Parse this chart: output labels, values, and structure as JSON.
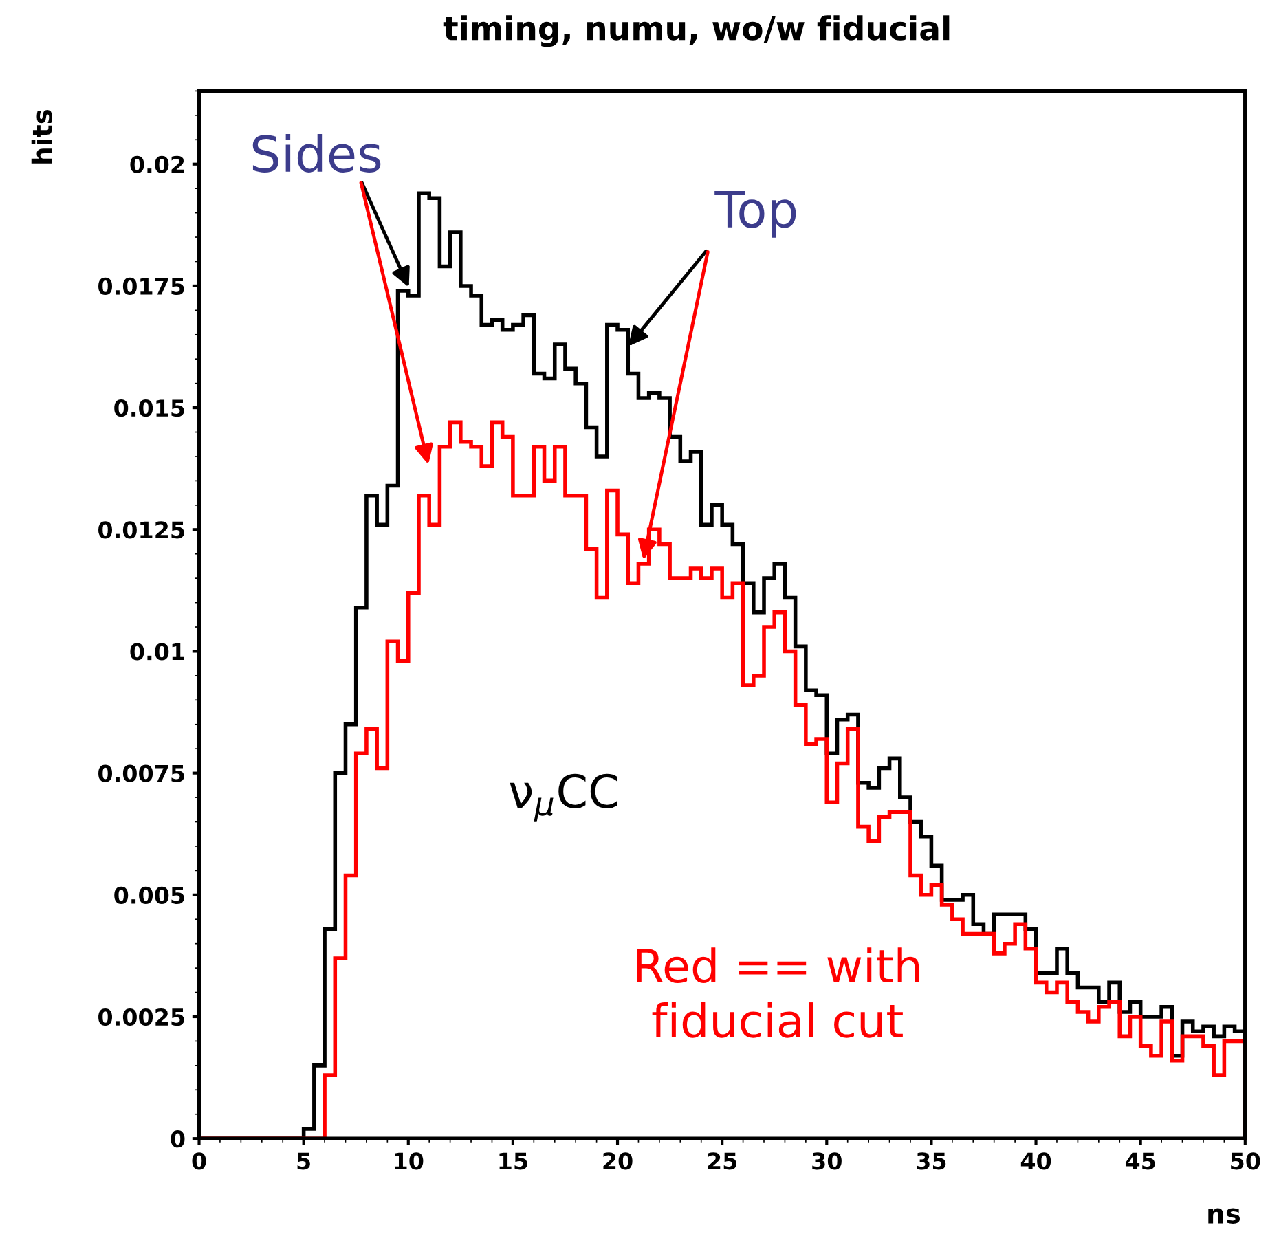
{
  "chart_data": {
    "type": "histogram",
    "title": "timing, numu, wo/w fiducial",
    "xlabel": "ns",
    "ylabel": "hits",
    "bins": [
      0,
      0.5,
      1,
      1.5,
      2,
      2.5,
      3,
      3.5,
      4,
      4.5,
      5,
      5.5,
      6,
      6.5,
      7,
      7.5,
      8,
      8.5,
      9,
      9.5,
      10,
      10.5,
      11,
      11.5,
      12,
      12.5,
      13,
      13.5,
      14,
      14.5,
      15,
      15.5,
      16,
      16.5,
      17,
      17.5,
      18,
      18.5,
      19,
      19.5,
      20,
      20.5,
      21,
      21.5,
      22,
      22.5,
      23,
      23.5,
      24,
      24.5,
      25,
      25.5,
      26,
      26.5,
      27,
      27.5,
      28,
      28.5,
      29,
      29.5,
      30,
      30.5,
      31,
      31.5,
      32,
      32.5,
      33,
      33.5,
      34,
      34.5,
      35,
      35.5,
      36,
      36.5,
      37,
      37.5,
      38,
      38.5,
      39,
      39.5,
      40,
      40.5,
      41,
      41.5,
      42,
      42.5,
      43,
      43.5,
      44,
      44.5,
      45,
      45.5,
      46,
      46.5,
      47,
      47.5,
      48,
      48.5,
      49,
      49.5,
      50
    ],
    "series": [
      {
        "color": "#000000",
        "values": [
          0,
          0,
          0,
          0,
          0,
          0,
          0,
          0,
          0,
          0,
          0.0002,
          0.0015,
          0.0043,
          0.0075,
          0.0085,
          0.0109,
          0.0132,
          0.0126,
          0.0134,
          0.0174,
          0.0173,
          0.0194,
          0.0193,
          0.0179,
          0.0186,
          0.0175,
          0.0173,
          0.0167,
          0.0168,
          0.0166,
          0.0167,
          0.0169,
          0.0157,
          0.0156,
          0.0163,
          0.0158,
          0.0155,
          0.0146,
          0.014,
          0.0167,
          0.0166,
          0.0157,
          0.0152,
          0.0153,
          0.0152,
          0.0144,
          0.0139,
          0.0141,
          0.0126,
          0.013,
          0.0126,
          0.0122,
          0.0114,
          0.0108,
          0.0115,
          0.0118,
          0.0111,
          0.0101,
          0.0092,
          0.0091,
          0.0079,
          0.0086,
          0.0087,
          0.0073,
          0.0072,
          0.0076,
          0.0078,
          0.007,
          0.0065,
          0.0062,
          0.0056,
          0.0049,
          0.0049,
          0.005,
          0.0044,
          0.0042,
          0.0046,
          0.0046,
          0.0046,
          0.0043,
          0.0034,
          0.0034,
          0.0039,
          0.0034,
          0.0031,
          0.0031,
          0.0028,
          0.0032,
          0.0026,
          0.0028,
          0.0025,
          0.0025,
          0.0027,
          0.0017,
          0.0024,
          0.0022,
          0.0023,
          0.0021,
          0.0023,
          0.0022
        ]
      },
      {
        "color": "#ff0000",
        "values": [
          0,
          0,
          0,
          0,
          0,
          0,
          0,
          0,
          0,
          0,
          0,
          0,
          0.0013,
          0.0037,
          0.0054,
          0.0079,
          0.0084,
          0.0076,
          0.0102,
          0.0098,
          0.0112,
          0.0132,
          0.0126,
          0.0142,
          0.0147,
          0.0143,
          0.0142,
          0.0138,
          0.0147,
          0.0144,
          0.0132,
          0.0132,
          0.0142,
          0.0135,
          0.0142,
          0.0132,
          0.0132,
          0.0121,
          0.0111,
          0.0133,
          0.0124,
          0.0114,
          0.0118,
          0.0125,
          0.0122,
          0.0115,
          0.0115,
          0.0117,
          0.0115,
          0.0117,
          0.0111,
          0.0114,
          0.0093,
          0.0095,
          0.0105,
          0.0108,
          0.01,
          0.0089,
          0.0081,
          0.0082,
          0.0069,
          0.0077,
          0.0084,
          0.0064,
          0.0061,
          0.0066,
          0.0067,
          0.0067,
          0.0054,
          0.005,
          0.0052,
          0.0048,
          0.0045,
          0.0042,
          0.0042,
          0.0042,
          0.0038,
          0.004,
          0.0044,
          0.0039,
          0.0032,
          0.003,
          0.0032,
          0.0028,
          0.0026,
          0.0024,
          0.0027,
          0.0028,
          0.0021,
          0.0025,
          0.0019,
          0.0017,
          0.0024,
          0.0016,
          0.0021,
          0.0021,
          0.0019,
          0.0013,
          0.002,
          0.002
        ]
      }
    ],
    "xlim": [
      0,
      50
    ],
    "ylim": [
      0,
      0.0215
    ],
    "xticks": [
      0,
      5,
      10,
      15,
      20,
      25,
      30,
      35,
      40,
      45,
      50
    ],
    "yticks": [
      0,
      0.0025,
      0.005,
      0.0075,
      0.01,
      0.0125,
      0.015,
      0.0175,
      0.02
    ],
    "annotations": [
      {
        "text": "Sides",
        "x": 10.1,
        "y": 0.0174
      },
      {
        "text": "Top",
        "x": 20.4,
        "y": 0.0162
      },
      "ν$_{μ}$CC",
      "Red == with\nfiducial cut"
    ],
    "grid": false,
    "legend": false
  }
}
